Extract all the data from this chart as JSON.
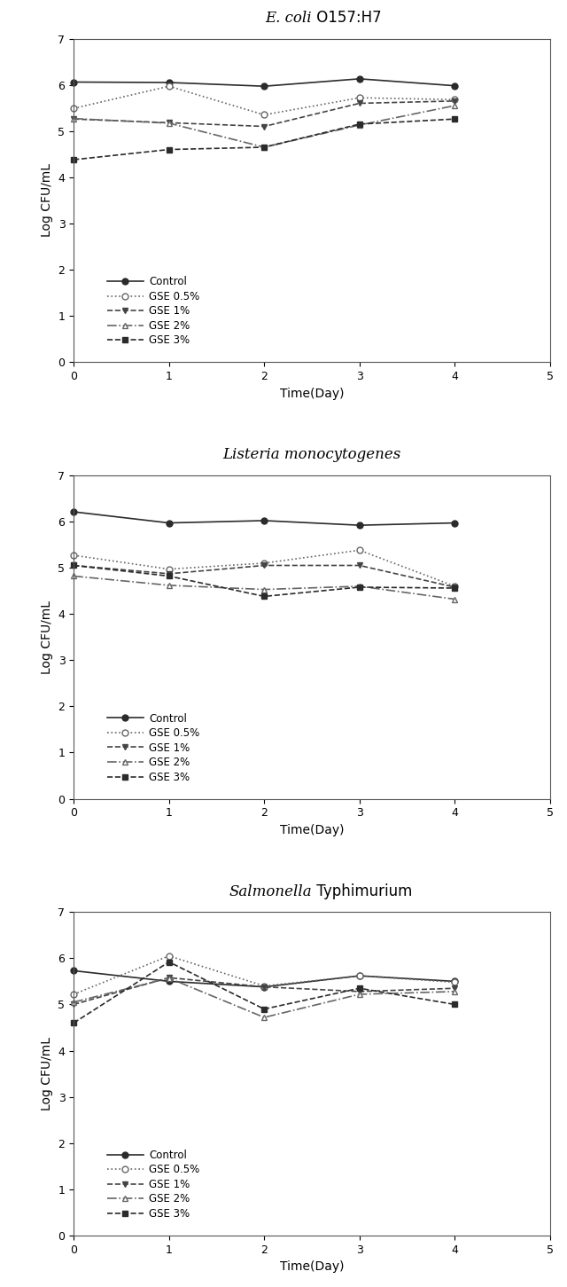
{
  "charts": [
    {
      "title": "E. coli O157:H7",
      "italic_part": "E. coli",
      "normal_part": " O157:H7",
      "series": {
        "Control": [
          6.06,
          6.05,
          5.97,
          6.13,
          5.98
        ],
        "GSE 0.5%": [
          5.49,
          5.97,
          5.35,
          5.72,
          5.68
        ],
        "GSE 1%": [
          5.26,
          5.18,
          5.1,
          5.6,
          5.65
        ],
        "GSE 2%": [
          5.27,
          5.17,
          4.65,
          5.13,
          5.55
        ],
        "GSE 3%": [
          4.38,
          4.6,
          4.65,
          5.15,
          5.26
        ]
      }
    },
    {
      "title": "Listeria monocytogenes",
      "italic_part": "Listeria monocytogenes",
      "normal_part": "",
      "series": {
        "Control": [
          6.21,
          5.97,
          6.02,
          5.92,
          5.97
        ],
        "GSE 0.5%": [
          5.27,
          4.97,
          5.1,
          5.38,
          4.6
        ],
        "GSE 1%": [
          5.05,
          4.87,
          5.05,
          5.05,
          4.58
        ],
        "GSE 2%": [
          4.82,
          4.62,
          4.53,
          4.6,
          4.32
        ],
        "GSE 3%": [
          5.05,
          4.82,
          4.38,
          4.58,
          4.56
        ]
      }
    },
    {
      "title": "Salmonella Typhimurium",
      "italic_part": "Salmonella",
      "normal_part": " Typhimurium",
      "series": {
        "Control": [
          5.73,
          5.5,
          5.38,
          5.62,
          5.5
        ],
        "GSE 0.5%": [
          5.22,
          6.05,
          5.4,
          5.62,
          5.48
        ],
        "GSE 1%": [
          5.0,
          5.58,
          5.38,
          5.28,
          5.35
        ],
        "GSE 2%": [
          5.05,
          5.57,
          4.72,
          5.22,
          5.28
        ],
        "GSE 3%": [
          4.6,
          5.92,
          4.9,
          5.35,
          5.0
        ]
      }
    }
  ],
  "x": [
    0,
    1,
    2,
    3,
    4
  ],
  "xlabel": "Time(Day)",
  "ylabel": "Log CFU/mL",
  "ylim": [
    0,
    7
  ],
  "yticks": [
    0,
    1,
    2,
    3,
    4,
    5,
    6,
    7
  ],
  "xlim": [
    0,
    5
  ],
  "xticks": [
    0,
    1,
    2,
    3,
    4,
    5
  ],
  "line_styles": {
    "Control": {
      "color": "#2b2b2b",
      "linestyle": "-",
      "marker": "o",
      "markerfacecolor": "#2b2b2b",
      "markersize": 5,
      "linewidth": 1.2
    },
    "GSE 0.5%": {
      "color": "#666666",
      "linestyle": ":",
      "marker": "o",
      "markerfacecolor": "white",
      "markersize": 5,
      "linewidth": 1.2
    },
    "GSE 1%": {
      "color": "#444444",
      "linestyle": "--",
      "marker": "v",
      "markerfacecolor": "#444444",
      "markersize": 5,
      "linewidth": 1.2
    },
    "GSE 2%": {
      "color": "#666666",
      "linestyle": "-.",
      "marker": "^",
      "markerfacecolor": "white",
      "markersize": 5,
      "linewidth": 1.2
    },
    "GSE 3%": {
      "color": "#2b2b2b",
      "linestyle": "--",
      "marker": "s",
      "markerfacecolor": "#2b2b2b",
      "markersize": 5,
      "linewidth": 1.2
    }
  },
  "legend_labels": [
    "Control",
    "GSE 0.5%",
    "GSE 1%",
    "GSE 2%",
    "GSE 3%"
  ],
  "background_color": "#ffffff",
  "fontsize_title": 12,
  "fontsize_axis": 10,
  "fontsize_tick": 9,
  "fontsize_legend": 8.5
}
